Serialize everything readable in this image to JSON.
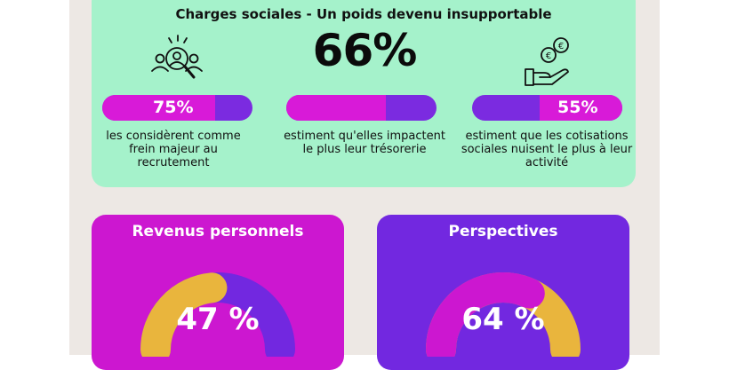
{
  "colors": {
    "green_card": "#a5f2cb",
    "magenta": "#cc17d0",
    "purple": "#7228e0",
    "pill_magenta": "#d81ad8",
    "pill_purple": "#7b2be0",
    "gold": "#e9b53d"
  },
  "charges": {
    "title": "Charges sociales - Un poids devenu insupportable",
    "big_stat": "66%",
    "stats": [
      {
        "icon": "people-search-icon",
        "value": 75,
        "label": "75%",
        "text": "les considèrent comme frein majeur au recrutement"
      },
      {
        "icon": "none",
        "value": 66,
        "label": "",
        "text": "estiment qu'elles impactent le plus leur trésorerie"
      },
      {
        "icon": "hand-euro-coins-icon",
        "value": 55,
        "label": "55%",
        "text": "estiment que les cotisations sociales nuisent le plus à leur activité"
      }
    ]
  },
  "revenus": {
    "title": "Revenus personnels",
    "value": 47,
    "label": "47 %",
    "foot": ""
  },
  "perspectives": {
    "title": "Perspectives",
    "value": 64,
    "label": "64 %",
    "foot": ""
  }
}
